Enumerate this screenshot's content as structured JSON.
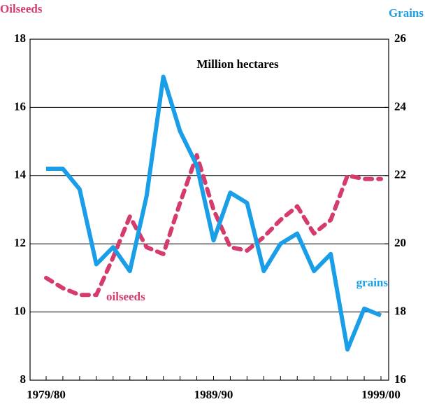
{
  "chart_data": {
    "type": "line",
    "annotation": "Million hectares",
    "ylabel": "Oilseeds",
    "y2label": "Grains",
    "x": [
      "1979/80",
      null,
      null,
      null,
      null,
      null,
      null,
      null,
      null,
      null,
      "1989/90",
      null,
      null,
      null,
      null,
      null,
      null,
      null,
      null,
      null,
      "1999/00"
    ],
    "series": [
      {
        "name": "oilseeds",
        "color": "#d63c6b",
        "style": "dashed",
        "axis": "y",
        "values": [
          11.0,
          10.7,
          10.5,
          10.5,
          11.6,
          12.8,
          11.9,
          11.7,
          13.2,
          14.6,
          13.0,
          11.9,
          11.8,
          12.2,
          12.7,
          13.1,
          12.3,
          12.7,
          14.0,
          13.9,
          13.9
        ]
      },
      {
        "name": "grains",
        "color": "#1a9ee8",
        "style": "solid",
        "axis": "y2",
        "values": [
          22.2,
          22.2,
          21.6,
          19.4,
          19.9,
          19.2,
          21.4,
          24.9,
          23.3,
          22.3,
          20.1,
          21.5,
          21.2,
          19.2,
          20.0,
          20.3,
          19.2,
          19.7,
          16.9,
          18.1,
          17.9
        ]
      }
    ],
    "ylim": [
      8,
      18
    ],
    "yticks": [
      8,
      10,
      12,
      14,
      16,
      18
    ],
    "y2lim": [
      16,
      26
    ],
    "y2ticks": [
      16,
      18,
      20,
      22,
      24,
      26
    ],
    "grid": true
  }
}
